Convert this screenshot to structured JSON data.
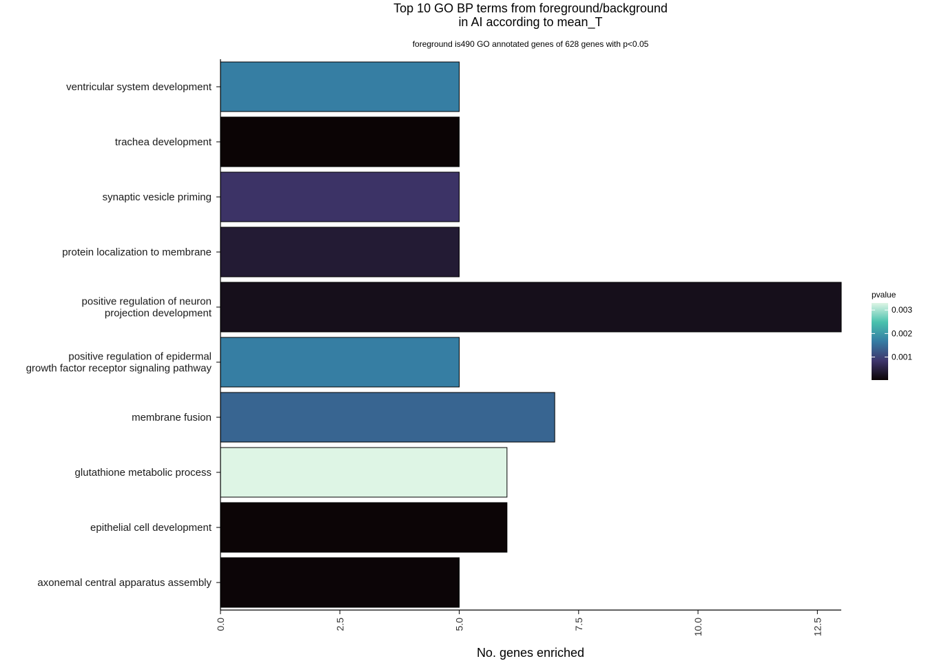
{
  "chart_data": {
    "type": "bar",
    "orientation": "horizontal",
    "title_lines": [
      "Top 10 GO BP terms from foreground/background",
      "in AI according to mean_T"
    ],
    "subtitle": "foreground is490 GO annotated genes of 628 genes with p<0.05",
    "xlabel": "No. genes enriched",
    "ylabel": "",
    "xlim": [
      0,
      13
    ],
    "x_ticks": [
      0.0,
      2.5,
      5.0,
      7.5,
      10.0,
      12.5
    ],
    "x_tick_labels": [
      "0.0",
      "2.5",
      "5.0",
      "7.5",
      "10.0",
      "12.5"
    ],
    "grid": false,
    "legend": {
      "title": "pvalue",
      "placement": "right",
      "range": [
        2e-05,
        0.0033
      ],
      "ticks": [
        0.001,
        0.002,
        0.003
      ],
      "tick_labels": [
        "0.001",
        "0.002",
        "0.003"
      ],
      "color_stops": [
        "#0b0405",
        "#3e356b",
        "#357ba3",
        "#49c1ad",
        "#def5e5"
      ]
    },
    "categories": [
      {
        "label": [
          "ventricular system development"
        ],
        "value": 5,
        "pvalue": 0.0017
      },
      {
        "label": [
          "trachea development"
        ],
        "value": 5,
        "pvalue": 2e-05
      },
      {
        "label": [
          "synaptic vesicle priming"
        ],
        "value": 5,
        "pvalue": 0.0008
      },
      {
        "label": [
          "protein localization to membrane"
        ],
        "value": 5,
        "pvalue": 0.0004
      },
      {
        "label": [
          "positive regulation of neuron",
          "projection development"
        ],
        "value": 13,
        "pvalue": 0.0002
      },
      {
        "label": [
          "positive regulation of epidermal",
          "growth factor receptor signaling pathway"
        ],
        "value": 5,
        "pvalue": 0.0017
      },
      {
        "label": [
          "membrane fusion"
        ],
        "value": 7,
        "pvalue": 0.0014
      },
      {
        "label": [
          "glutathione metabolic process"
        ],
        "value": 6,
        "pvalue": 0.0033
      },
      {
        "label": [
          "epithelial cell development"
        ],
        "value": 6,
        "pvalue": 3e-05
      },
      {
        "label": [
          "axonemal central apparatus assembly"
        ],
        "value": 5,
        "pvalue": 4e-05
      }
    ]
  }
}
